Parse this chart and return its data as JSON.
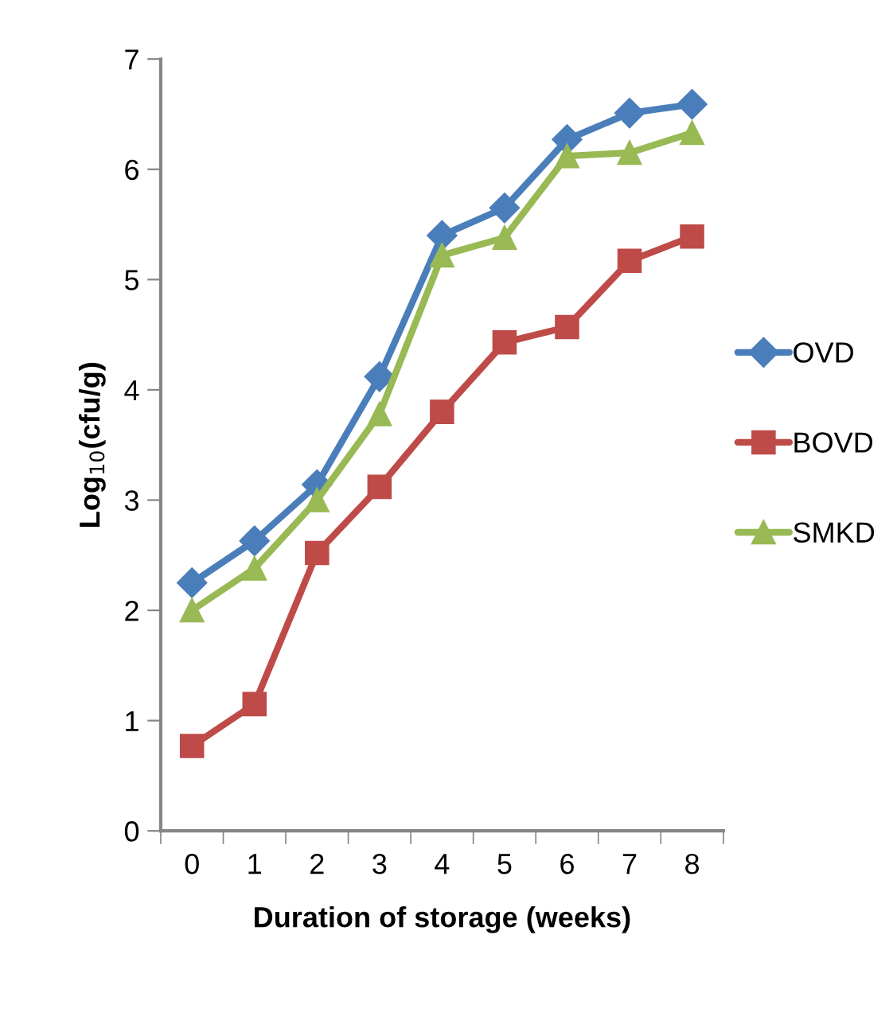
{
  "chart_data": {
    "type": "line",
    "xlabel": "Duration of storage (weeks)",
    "ylabel": "Log$_{10}$(cfu/g)",
    "categories": [
      "0",
      "1",
      "2",
      "3",
      "4",
      "5",
      "6",
      "7",
      "8"
    ],
    "series": [
      {
        "name": "OVD",
        "color": "#4a7ebb",
        "marker": "diamond",
        "values": [
          2.25,
          2.63,
          3.14,
          4.12,
          5.4,
          5.65,
          6.27,
          6.51,
          6.59
        ]
      },
      {
        "name": "BOVD",
        "color": "#be4b48",
        "marker": "square",
        "values": [
          0.77,
          1.15,
          2.52,
          3.12,
          3.8,
          4.43,
          4.57,
          5.17,
          5.39
        ]
      },
      {
        "name": "SMKD",
        "color": "#98b954",
        "marker": "triangle",
        "values": [
          2.0,
          2.38,
          3.0,
          3.78,
          5.22,
          5.38,
          6.12,
          6.15,
          6.33
        ]
      }
    ],
    "ylim": [
      0,
      7
    ],
    "yticks": [
      0,
      1,
      2,
      3,
      4,
      5,
      6,
      7
    ],
    "grid": false,
    "legend": "right",
    "line_style": "solid"
  }
}
